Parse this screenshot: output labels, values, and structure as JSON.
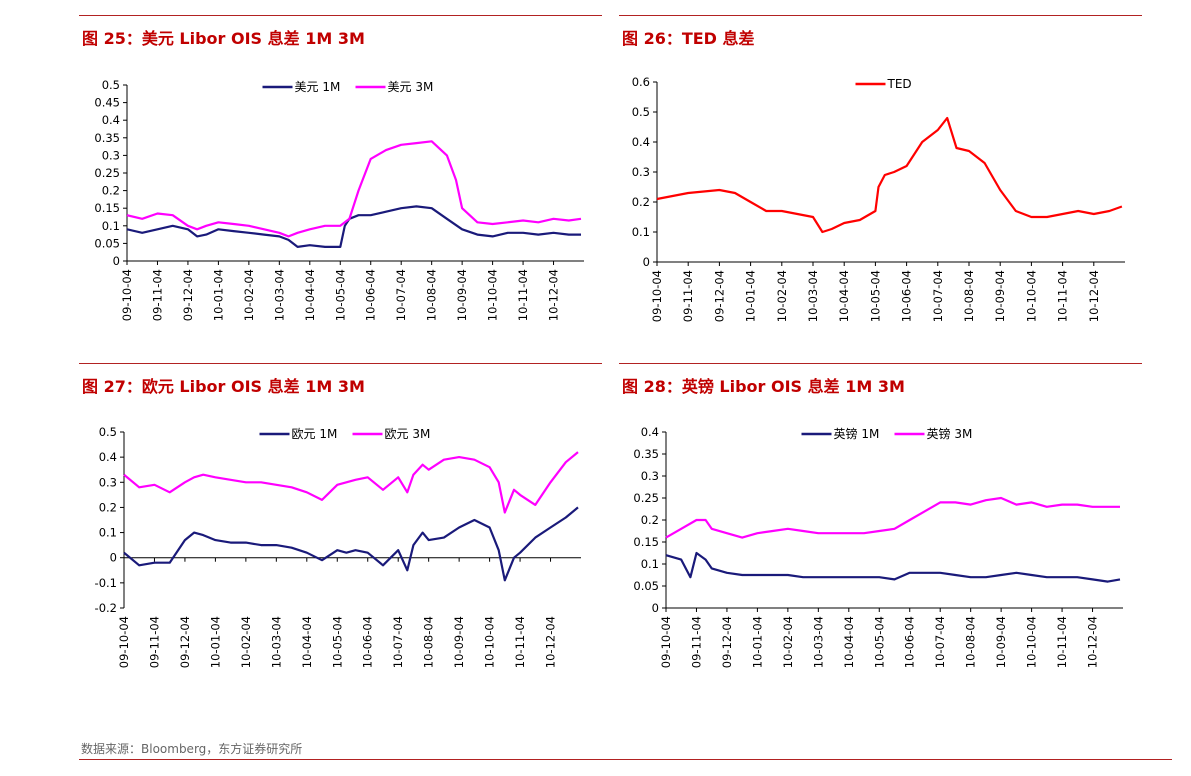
{
  "chart_data": [
    {
      "title": "图 25：美元 Libor OIS 息差 1M 3M",
      "type": "line",
      "xticks": [
        "09-10-04",
        "09-11-04",
        "09-12-04",
        "10-01-04",
        "10-02-04",
        "10-03-04",
        "10-04-04",
        "10-05-04",
        "10-06-04",
        "10-07-04",
        "10-08-04",
        "10-09-04",
        "10-10-04",
        "10-11-04",
        "10-12-04"
      ],
      "ylim": [
        0,
        0.5
      ],
      "yticks": [
        "0",
        "0.05",
        "0.1",
        "0.15",
        "0.2",
        "0.25",
        "0.3",
        "0.35",
        "0.4",
        "0.45",
        "0.5"
      ],
      "legend_position": "top-center",
      "series": [
        {
          "name": "美元 1M",
          "color": "#1a1a7a",
          "x": [
            0,
            0.5,
            1,
            1.5,
            2,
            2.3,
            2.6,
            3,
            3.5,
            4,
            4.5,
            5,
            5.3,
            5.6,
            6,
            6.5,
            7,
            7.15,
            7.3,
            7.6,
            8,
            8.5,
            9,
            9.5,
            10,
            10.5,
            11,
            11.5,
            12,
            12.5,
            13,
            13.5,
            14,
            14.5,
            14.9
          ],
          "y": [
            0.09,
            0.08,
            0.09,
            0.1,
            0.09,
            0.07,
            0.075,
            0.09,
            0.085,
            0.08,
            0.075,
            0.07,
            0.06,
            0.04,
            0.045,
            0.04,
            0.04,
            0.1,
            0.12,
            0.13,
            0.13,
            0.14,
            0.15,
            0.155,
            0.15,
            0.12,
            0.09,
            0.075,
            0.07,
            0.08,
            0.08,
            0.075,
            0.08,
            0.075,
            0.075
          ]
        },
        {
          "name": "美元 3M",
          "color": "#ff00ff",
          "x": [
            0,
            0.5,
            1,
            1.5,
            2,
            2.3,
            2.6,
            3,
            3.5,
            4,
            4.5,
            5,
            5.3,
            5.6,
            6,
            6.5,
            7,
            7.3,
            7.6,
            8,
            8.5,
            9,
            9.5,
            10,
            10.5,
            10.8,
            11,
            11.5,
            12,
            12.5,
            13,
            13.5,
            14,
            14.5,
            14.9
          ],
          "y": [
            0.13,
            0.12,
            0.135,
            0.13,
            0.1,
            0.09,
            0.1,
            0.11,
            0.105,
            0.1,
            0.09,
            0.08,
            0.07,
            0.08,
            0.09,
            0.1,
            0.1,
            0.12,
            0.2,
            0.29,
            0.315,
            0.33,
            0.335,
            0.34,
            0.3,
            0.23,
            0.15,
            0.11,
            0.105,
            0.11,
            0.115,
            0.11,
            0.12,
            0.115,
            0.12
          ]
        }
      ]
    },
    {
      "title": "图 26：TED 息差",
      "type": "line",
      "xticks": [
        "09-10-04",
        "09-11-04",
        "09-12-04",
        "10-01-04",
        "10-02-04",
        "10-03-04",
        "10-04-04",
        "10-05-04",
        "10-06-04",
        "10-07-04",
        "10-08-04",
        "10-09-04",
        "10-10-04",
        "10-11-04",
        "10-12-04"
      ],
      "ylim": [
        0,
        0.6
      ],
      "yticks": [
        "0",
        "0.1",
        "0.2",
        "0.3",
        "0.4",
        "0.5",
        "0.6"
      ],
      "legend_position": "top-center",
      "series": [
        {
          "name": "TED",
          "color": "#ff0000",
          "x": [
            0,
            0.5,
            1,
            1.5,
            2,
            2.5,
            3,
            3.5,
            4,
            4.5,
            5,
            5.3,
            5.6,
            6,
            6.5,
            7,
            7.1,
            7.3,
            7.6,
            8,
            8.5,
            9,
            9.3,
            9.6,
            10,
            10.5,
            11,
            11.5,
            12,
            12.5,
            13,
            13.5,
            14,
            14.5,
            14.9
          ],
          "y": [
            0.21,
            0.22,
            0.23,
            0.235,
            0.24,
            0.23,
            0.2,
            0.17,
            0.17,
            0.16,
            0.15,
            0.1,
            0.11,
            0.13,
            0.14,
            0.17,
            0.25,
            0.29,
            0.3,
            0.32,
            0.4,
            0.44,
            0.48,
            0.38,
            0.37,
            0.33,
            0.24,
            0.17,
            0.15,
            0.15,
            0.16,
            0.17,
            0.16,
            0.17,
            0.185
          ]
        }
      ]
    },
    {
      "title": "图 27：欧元 Libor OIS 息差 1M 3M",
      "type": "line",
      "xticks": [
        "09-10-04",
        "09-11-04",
        "09-12-04",
        "10-01-04",
        "10-02-04",
        "10-03-04",
        "10-04-04",
        "10-05-04",
        "10-06-04",
        "10-07-04",
        "10-08-04",
        "10-09-04",
        "10-10-04",
        "10-11-04",
        "10-12-04"
      ],
      "ylim": [
        -0.2,
        0.5
      ],
      "yticks": [
        "-0.2",
        "-0.1",
        "0",
        "0.1",
        "0.2",
        "0.3",
        "0.4",
        "0.5"
      ],
      "legend_position": "top-center",
      "series": [
        {
          "name": "欧元 1M",
          "color": "#1a1a7a",
          "x": [
            0,
            0.5,
            1,
            1.5,
            2,
            2.3,
            2.6,
            3,
            3.5,
            4,
            4.5,
            5,
            5.5,
            6,
            6.5,
            7,
            7.3,
            7.6,
            8,
            8.5,
            9,
            9.3,
            9.5,
            9.8,
            10,
            10.5,
            11,
            11.5,
            12,
            12.3,
            12.5,
            12.8,
            13,
            13.5,
            14,
            14.5,
            14.9
          ],
          "y": [
            0.02,
            -0.03,
            -0.02,
            -0.02,
            0.07,
            0.1,
            0.09,
            0.07,
            0.06,
            0.06,
            0.05,
            0.05,
            0.04,
            0.02,
            -0.01,
            0.03,
            0.02,
            0.03,
            0.02,
            -0.03,
            0.03,
            -0.05,
            0.05,
            0.1,
            0.07,
            0.08,
            0.12,
            0.15,
            0.12,
            0.03,
            -0.09,
            0.0,
            0.02,
            0.08,
            0.12,
            0.16,
            0.2
          ]
        },
        {
          "name": "欧元 3M",
          "color": "#ff00ff",
          "x": [
            0,
            0.5,
            1,
            1.5,
            2,
            2.3,
            2.6,
            3,
            3.5,
            4,
            4.5,
            5,
            5.5,
            6,
            6.5,
            7,
            7.3,
            7.6,
            8,
            8.5,
            9,
            9.3,
            9.5,
            9.8,
            10,
            10.5,
            11,
            11.5,
            12,
            12.3,
            12.5,
            12.8,
            13,
            13.5,
            14,
            14.5,
            14.9
          ],
          "y": [
            0.33,
            0.28,
            0.29,
            0.26,
            0.3,
            0.32,
            0.33,
            0.32,
            0.31,
            0.3,
            0.3,
            0.29,
            0.28,
            0.26,
            0.23,
            0.29,
            0.3,
            0.31,
            0.32,
            0.27,
            0.32,
            0.26,
            0.33,
            0.37,
            0.35,
            0.39,
            0.4,
            0.39,
            0.36,
            0.3,
            0.18,
            0.27,
            0.25,
            0.21,
            0.3,
            0.38,
            0.42
          ]
        }
      ]
    },
    {
      "title": "图 28：英镑 Libor OIS 息差 1M 3M",
      "type": "line",
      "xticks": [
        "09-10-04",
        "09-11-04",
        "09-12-04",
        "10-01-04",
        "10-02-04",
        "10-03-04",
        "10-04-04",
        "10-05-04",
        "10-06-04",
        "10-07-04",
        "10-08-04",
        "10-09-04",
        "10-10-04",
        "10-11-04",
        "10-12-04"
      ],
      "ylim": [
        0,
        0.4
      ],
      "yticks": [
        "0",
        "0.05",
        "0.1",
        "0.15",
        "0.2",
        "0.25",
        "0.3",
        "0.35",
        "0.4"
      ],
      "legend_position": "top-center",
      "series": [
        {
          "name": "英镑 1M",
          "color": "#1a1a7a",
          "x": [
            0,
            0.5,
            0.8,
            1,
            1.3,
            1.5,
            2,
            2.5,
            3,
            3.5,
            4,
            4.5,
            5,
            5.5,
            6,
            6.5,
            7,
            7.5,
            8,
            8.5,
            9,
            9.5,
            10,
            10.5,
            11,
            11.5,
            12,
            12.5,
            13,
            13.5,
            14,
            14.5,
            14.9
          ],
          "y": [
            0.12,
            0.11,
            0.07,
            0.125,
            0.11,
            0.09,
            0.08,
            0.075,
            0.075,
            0.075,
            0.075,
            0.07,
            0.07,
            0.07,
            0.07,
            0.07,
            0.07,
            0.065,
            0.08,
            0.08,
            0.08,
            0.075,
            0.07,
            0.07,
            0.075,
            0.08,
            0.075,
            0.07,
            0.07,
            0.07,
            0.065,
            0.06,
            0.065
          ]
        },
        {
          "name": "英镑 3M",
          "color": "#ff00ff",
          "x": [
            0,
            0.5,
            1,
            1.3,
            1.5,
            2,
            2.5,
            3,
            3.5,
            4,
            4.5,
            5,
            5.5,
            6,
            6.5,
            7,
            7.5,
            8,
            8.5,
            9,
            9.5,
            10,
            10.5,
            11,
            11.5,
            12,
            12.5,
            13,
            13.5,
            14,
            14.5,
            14.9
          ],
          "y": [
            0.16,
            0.18,
            0.2,
            0.2,
            0.18,
            0.17,
            0.16,
            0.17,
            0.175,
            0.18,
            0.175,
            0.17,
            0.17,
            0.17,
            0.17,
            0.175,
            0.18,
            0.2,
            0.22,
            0.24,
            0.24,
            0.235,
            0.245,
            0.25,
            0.235,
            0.24,
            0.23,
            0.235,
            0.235,
            0.23,
            0.23,
            0.23
          ]
        }
      ]
    }
  ],
  "source": "数据来源：Bloomberg，东方证券研究所"
}
